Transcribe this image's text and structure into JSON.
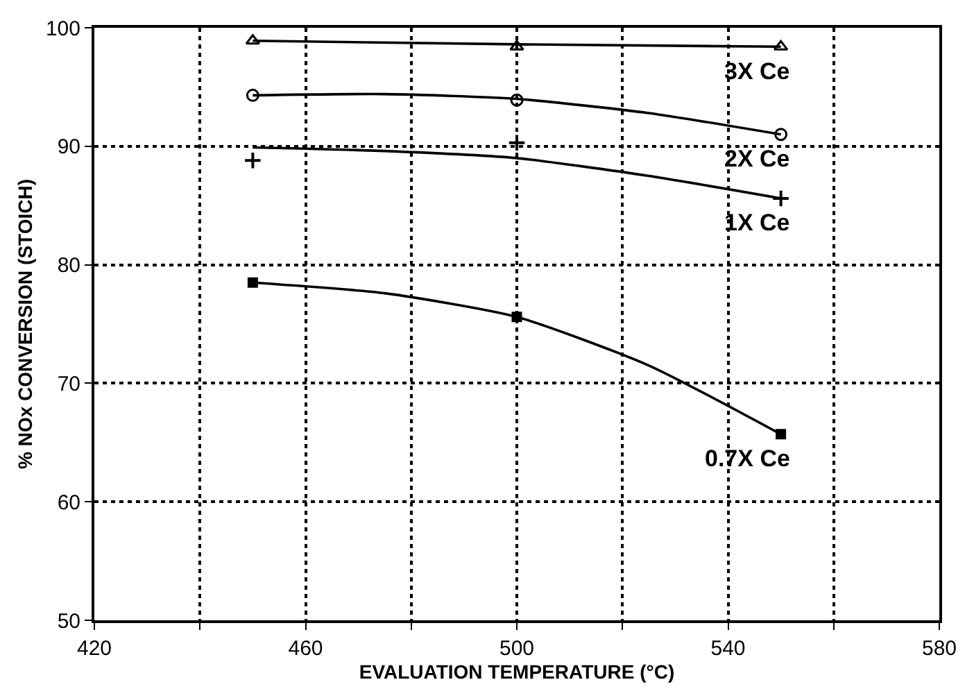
{
  "chart_data": {
    "type": "scatter",
    "xlabel": "EVALUATION TEMPERATURE (°C)",
    "ylabel": "% NOx CONVERSION (STOICH)",
    "xlim": [
      420,
      580
    ],
    "xticks": [
      420,
      {
        "value": 440,
        "label": null
      },
      460,
      {
        "value": 480,
        "label": null
      },
      500,
      {
        "value": 520,
        "label": null
      },
      540,
      {
        "value": 560,
        "label": null
      },
      580
    ],
    "ylim": [
      50,
      100
    ],
    "yticks": [
      50,
      60,
      70,
      80,
      90,
      100
    ],
    "grid": true,
    "series": [
      {
        "marker": "triangle",
        "color": "#000000",
        "x": [
          450,
          500,
          550
        ],
        "values": [
          98.9,
          98.4,
          98.4
        ]
      },
      {
        "marker": "circle",
        "color": "#000000",
        "x": [
          450,
          500,
          550
        ],
        "values": [
          94.3,
          93.9,
          91.0
        ]
      },
      {
        "marker": "cross",
        "color": "#000000",
        "x": [
          450,
          500,
          550
        ],
        "values": [
          88.8,
          90.3,
          85.6
        ]
      },
      {
        "marker": "square",
        "color": "#000000",
        "x": [
          450,
          500,
          550
        ],
        "values": [
          78.5,
          75.6,
          65.7
        ]
      },
      {
        "type": "line",
        "name": "3X Ce",
        "color": "#000000",
        "x": [
          450,
          500,
          550
        ],
        "values": [
          98.9,
          98.6,
          98.4
        ]
      },
      {
        "type": "line",
        "name": "2X Ce",
        "color": "#000000",
        "x": [
          450,
          475,
          500,
          525,
          550
        ],
        "values": [
          94.3,
          94.4,
          94.0,
          92.8,
          91.0
        ]
      },
      {
        "type": "line",
        "name": "1X Ce",
        "color": "#000000",
        "x": [
          450,
          475,
          500,
          525,
          550
        ],
        "values": [
          89.9,
          89.6,
          89.0,
          87.5,
          85.6
        ]
      },
      {
        "type": "line",
        "name": "0.7X Ce",
        "color": "#000000",
        "x": [
          450,
          475,
          500,
          525,
          550
        ],
        "values": [
          78.5,
          77.6,
          75.6,
          71.5,
          65.7
        ]
      }
    ]
  }
}
